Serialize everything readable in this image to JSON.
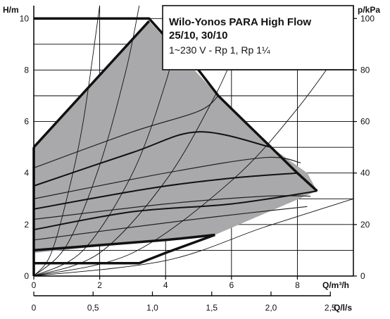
{
  "chart_data": {
    "type": "line",
    "title": "Wilo-Yonos PARA High Flow",
    "subtitle": "25/10, 30/10",
    "spec": "1~230 V - Rp 1, Rp 1¼",
    "ylabel_left": "H/m",
    "ylabel_right": "p/kPa",
    "xlabel": "Q/m³/h",
    "xlabel_secondary": "Q/l/s",
    "xlim": [
      0,
      9.7
    ],
    "ylim": [
      0,
      10.5
    ],
    "x_ticks": [
      {
        "value": 0,
        "label": "0"
      },
      {
        "value": 2,
        "label": "2"
      },
      {
        "value": 4,
        "label": "4"
      },
      {
        "value": 6,
        "label": "6"
      },
      {
        "value": 8,
        "label": "8"
      }
    ],
    "y_ticks": [
      {
        "value": 0,
        "label": "0"
      },
      {
        "value": 2,
        "label": "2"
      },
      {
        "value": 4,
        "label": "4"
      },
      {
        "value": 6,
        "label": "6"
      },
      {
        "value": 8,
        "label": "8"
      },
      {
        "value": 10,
        "label": "10"
      }
    ],
    "y_ticks_right": [
      {
        "value": 0,
        "label": "0"
      },
      {
        "value": 2,
        "label": "20"
      },
      {
        "value": 4,
        "label": "40"
      },
      {
        "value": 6,
        "label": "60"
      },
      {
        "value": 8,
        "label": "80"
      },
      {
        "value": 10,
        "label": "100"
      }
    ],
    "x_ticks_secondary": [
      {
        "value": 0,
        "label": "0"
      },
      {
        "value": 1.8,
        "label": "0,5"
      },
      {
        "value": 3.6,
        "label": "1,0"
      },
      {
        "value": 5.4,
        "label": "1,5"
      },
      {
        "value": 7.2,
        "label": "2,0"
      },
      {
        "value": 9.0,
        "label": "2,5"
      }
    ],
    "grid": true,
    "operating_range": [
      [
        0,
        5.0
      ],
      [
        3.5,
        9.9
      ],
      [
        5.6,
        7.0
      ],
      [
        7.2,
        5.0
      ],
      [
        8.3,
        4.0
      ],
      [
        8.6,
        3.3
      ],
      [
        5.5,
        1.6
      ],
      [
        4.0,
        1.4
      ],
      [
        0,
        0.9
      ]
    ],
    "max_curve": [
      [
        0,
        10.0
      ],
      [
        3.5,
        10.0
      ],
      [
        4.2,
        9.0
      ],
      [
        5.0,
        8.0
      ],
      [
        5.6,
        7.0
      ],
      [
        6.4,
        6.0
      ],
      [
        7.2,
        5.0
      ],
      [
        8.0,
        4.0
      ],
      [
        8.6,
        3.3
      ]
    ],
    "min_curve": [
      [
        0,
        0.5
      ],
      [
        3.2,
        0.5
      ],
      [
        4.0,
        0.9
      ],
      [
        5.5,
        1.6
      ]
    ],
    "inner_min_curve": [
      [
        0,
        1.0
      ],
      [
        2.0,
        1.2
      ],
      [
        4.0,
        1.4
      ],
      [
        5.5,
        1.6
      ]
    ],
    "left_boundary": [
      [
        0,
        0
      ],
      [
        0,
        5.0
      ]
    ],
    "top_boundary": [
      [
        0,
        5.0
      ],
      [
        3.5,
        9.9
      ]
    ],
    "thick_curves": [
      [
        [
          0,
          3.5
        ],
        [
          3.0,
          4.8
        ],
        [
          5.0,
          5.6
        ],
        [
          7.2,
          5.0
        ]
      ],
      [
        [
          0,
          2.6
        ],
        [
          3.5,
          3.4
        ],
        [
          6.0,
          3.8
        ],
        [
          8.0,
          4.0
        ]
      ],
      [
        [
          0,
          1.8
        ],
        [
          3.0,
          2.5
        ],
        [
          6.0,
          2.8
        ],
        [
          8.6,
          3.3
        ]
      ]
    ],
    "thin_curves": [
      [
        [
          0,
          4.2
        ],
        [
          3.0,
          5.6
        ],
        [
          5.0,
          6.4
        ],
        [
          5.6,
          7.0
        ]
      ],
      [
        [
          0,
          3.0
        ],
        [
          4.0,
          4.0
        ],
        [
          7.0,
          4.6
        ],
        [
          8.1,
          4.4
        ]
      ],
      [
        [
          0,
          2.2
        ],
        [
          4.0,
          2.8
        ],
        [
          7.0,
          3.1
        ],
        [
          8.4,
          3.1
        ]
      ],
      [
        [
          0,
          1.4
        ],
        [
          3.0,
          1.9
        ],
        [
          5.5,
          2.3
        ],
        [
          8.3,
          2.7
        ]
      ]
    ],
    "system_curves": [
      [
        [
          0,
          0
        ],
        [
          0.5,
          0.8
        ],
        [
          1.0,
          3.0
        ],
        [
          1.5,
          6.0
        ],
        [
          2.0,
          10.5
        ]
      ],
      [
        [
          0,
          0
        ],
        [
          1.0,
          1.2
        ],
        [
          2.0,
          4.3
        ],
        [
          2.8,
          8.0
        ],
        [
          3.2,
          10.5
        ]
      ],
      [
        [
          0,
          0
        ],
        [
          1.5,
          1.0
        ],
        [
          3.0,
          4.0
        ],
        [
          4.0,
          7.5
        ],
        [
          4.6,
          10.5
        ]
      ],
      [
        [
          0,
          0
        ],
        [
          2.0,
          0.9
        ],
        [
          4.0,
          3.7
        ],
        [
          5.5,
          7.0
        ],
        [
          6.2,
          9.0
        ]
      ],
      [
        [
          0,
          0
        ],
        [
          3.0,
          0.9
        ],
        [
          6.0,
          3.7
        ],
        [
          8.0,
          6.5
        ],
        [
          9.7,
          9.5
        ]
      ],
      [
        [
          0,
          0
        ],
        [
          4.0,
          0.6
        ],
        [
          7.0,
          1.9
        ],
        [
          9.7,
          3.0
        ]
      ]
    ]
  }
}
